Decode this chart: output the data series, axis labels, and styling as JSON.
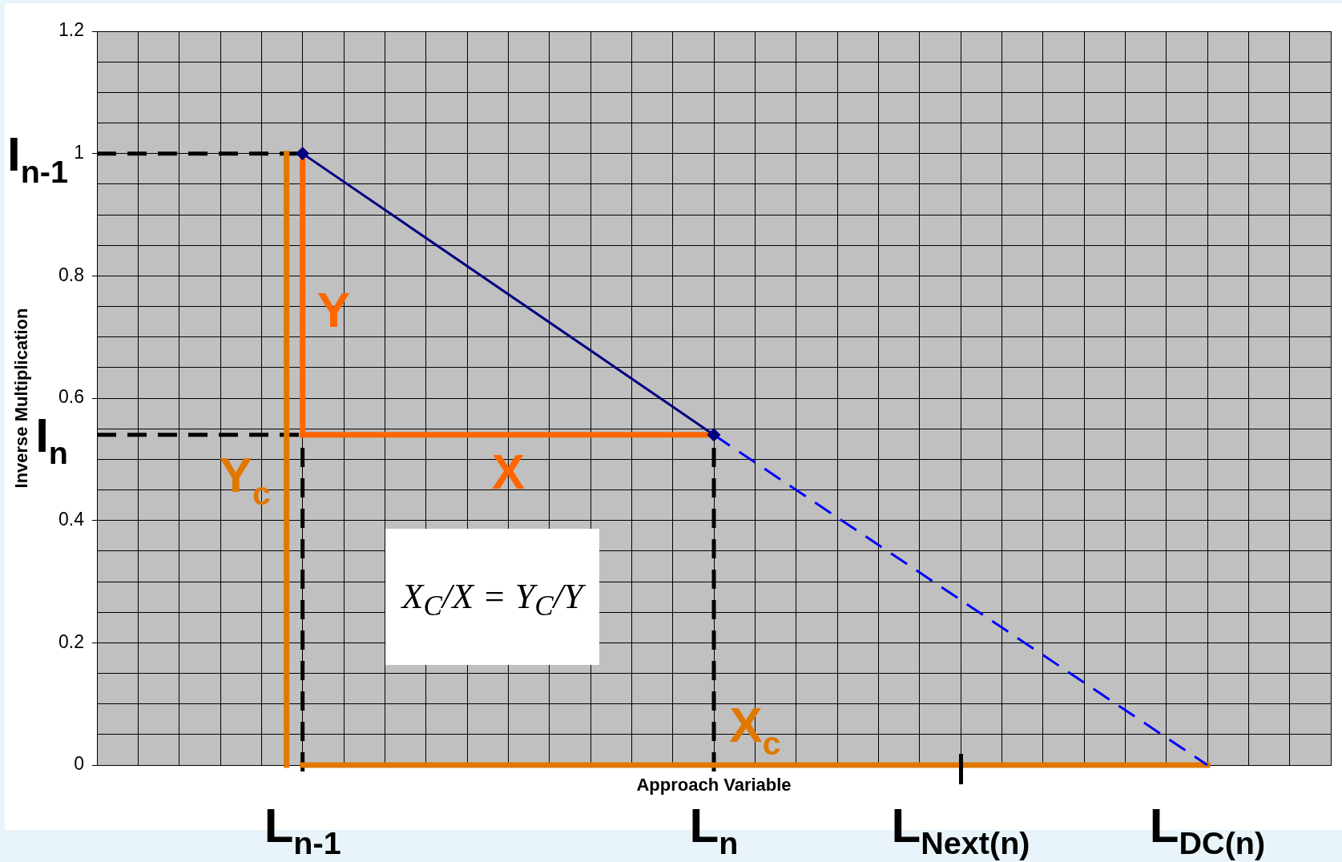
{
  "chart_data": {
    "type": "line",
    "xlabel": "Approach Variable",
    "ylabel": "Inverse Multiplication",
    "categories": [
      null,
      null,
      null,
      null,
      null,
      "L$_{n-1}$",
      null,
      null,
      null,
      null,
      null,
      null,
      null,
      null,
      null,
      "L$_{n}$",
      null,
      null,
      null,
      null,
      null,
      "L$_{Next(n)}$",
      null,
      null,
      null,
      null,
      null,
      "L$_{DC(n)}$",
      null,
      null,
      null
    ],
    "ylim": [
      0,
      1.2
    ],
    "yticks": [
      0,
      {
        "value": 0.05,
        "label": null
      },
      {
        "value": 0.1,
        "label": null
      },
      {
        "value": 0.15,
        "label": null
      },
      0.2,
      {
        "value": 0.25,
        "label": null
      },
      {
        "value": 0.3,
        "label": null
      },
      {
        "value": 0.35,
        "label": null
      },
      0.4,
      {
        "value": 0.45,
        "label": null
      },
      {
        "value": 0.5,
        "label": null
      },
      {
        "value": 0.55,
        "label": null
      },
      0.6,
      {
        "value": 0.65,
        "label": null
      },
      {
        "value": 0.7,
        "label": null
      },
      {
        "value": 0.75,
        "label": null
      },
      0.8,
      {
        "value": 0.85,
        "label": null
      },
      {
        "value": 0.9,
        "label": null
      },
      {
        "value": 0.95,
        "label": null
      },
      1,
      {
        "value": 1.05,
        "label": null
      },
      {
        "value": 1.1,
        "label": null
      },
      {
        "value": 1.15,
        "label": null
      },
      1.2
    ],
    "grid": true,
    "legend": false,
    "series": [
      {
        "color": "#000080",
        "x": [
          "L$_{n-1}$",
          "L$_{n}$"
        ],
        "values": [
          1,
          0.54
        ],
        "marker": "diamond"
      },
      {
        "color": "#0000ff",
        "x": [
          "L$_{n}$",
          "L$_{DC(n)}$"
        ],
        "values": [
          0.54,
          0
        ],
        "line_style": "dashed"
      },
      {
        "name": "Y",
        "color": "#ff6600",
        "x": [
          "L$_{n-1}$",
          "L$_{n-1}$"
        ],
        "values": [
          1,
          0.54
        ]
      },
      {
        "name": "X",
        "color": "#ff6600",
        "x": [
          "L$_{n-1}$",
          "L$_{n}$"
        ],
        "values": [
          0.54,
          0.54
        ]
      },
      {
        "name": "Y$_{c}$",
        "color": "#e07800",
        "x": [
          "L$_{n-1}$",
          "L$_{n-1}$"
        ],
        "values": [
          1,
          0
        ]
      },
      {
        "name": "X$_{c}$",
        "color": "#e07800",
        "x": [
          "L$_{n-1}$",
          "L$_{DC(n)}$"
        ],
        "values": [
          0,
          0
        ]
      }
    ],
    "ref_lines": [
      {
        "axis": "y",
        "value": 1,
        "label": "I$_{n-1}$",
        "color": "#000000",
        "line_style": "dashed"
      },
      {
        "axis": "y",
        "value": 0.54,
        "label": "I$_{n}$",
        "color": "#000000",
        "line_style": "dashed"
      },
      {
        "axis": "x",
        "value": "L$_{n-1}$",
        "color": "#000000",
        "line_style": "dashed"
      },
      {
        "axis": "x",
        "value": "L$_{n}$",
        "color": "#000000",
        "line_style": "dashed"
      }
    ],
    "annotations": [
      "X$_{C}$/X = Y$_{C}$/Y"
    ]
  }
}
